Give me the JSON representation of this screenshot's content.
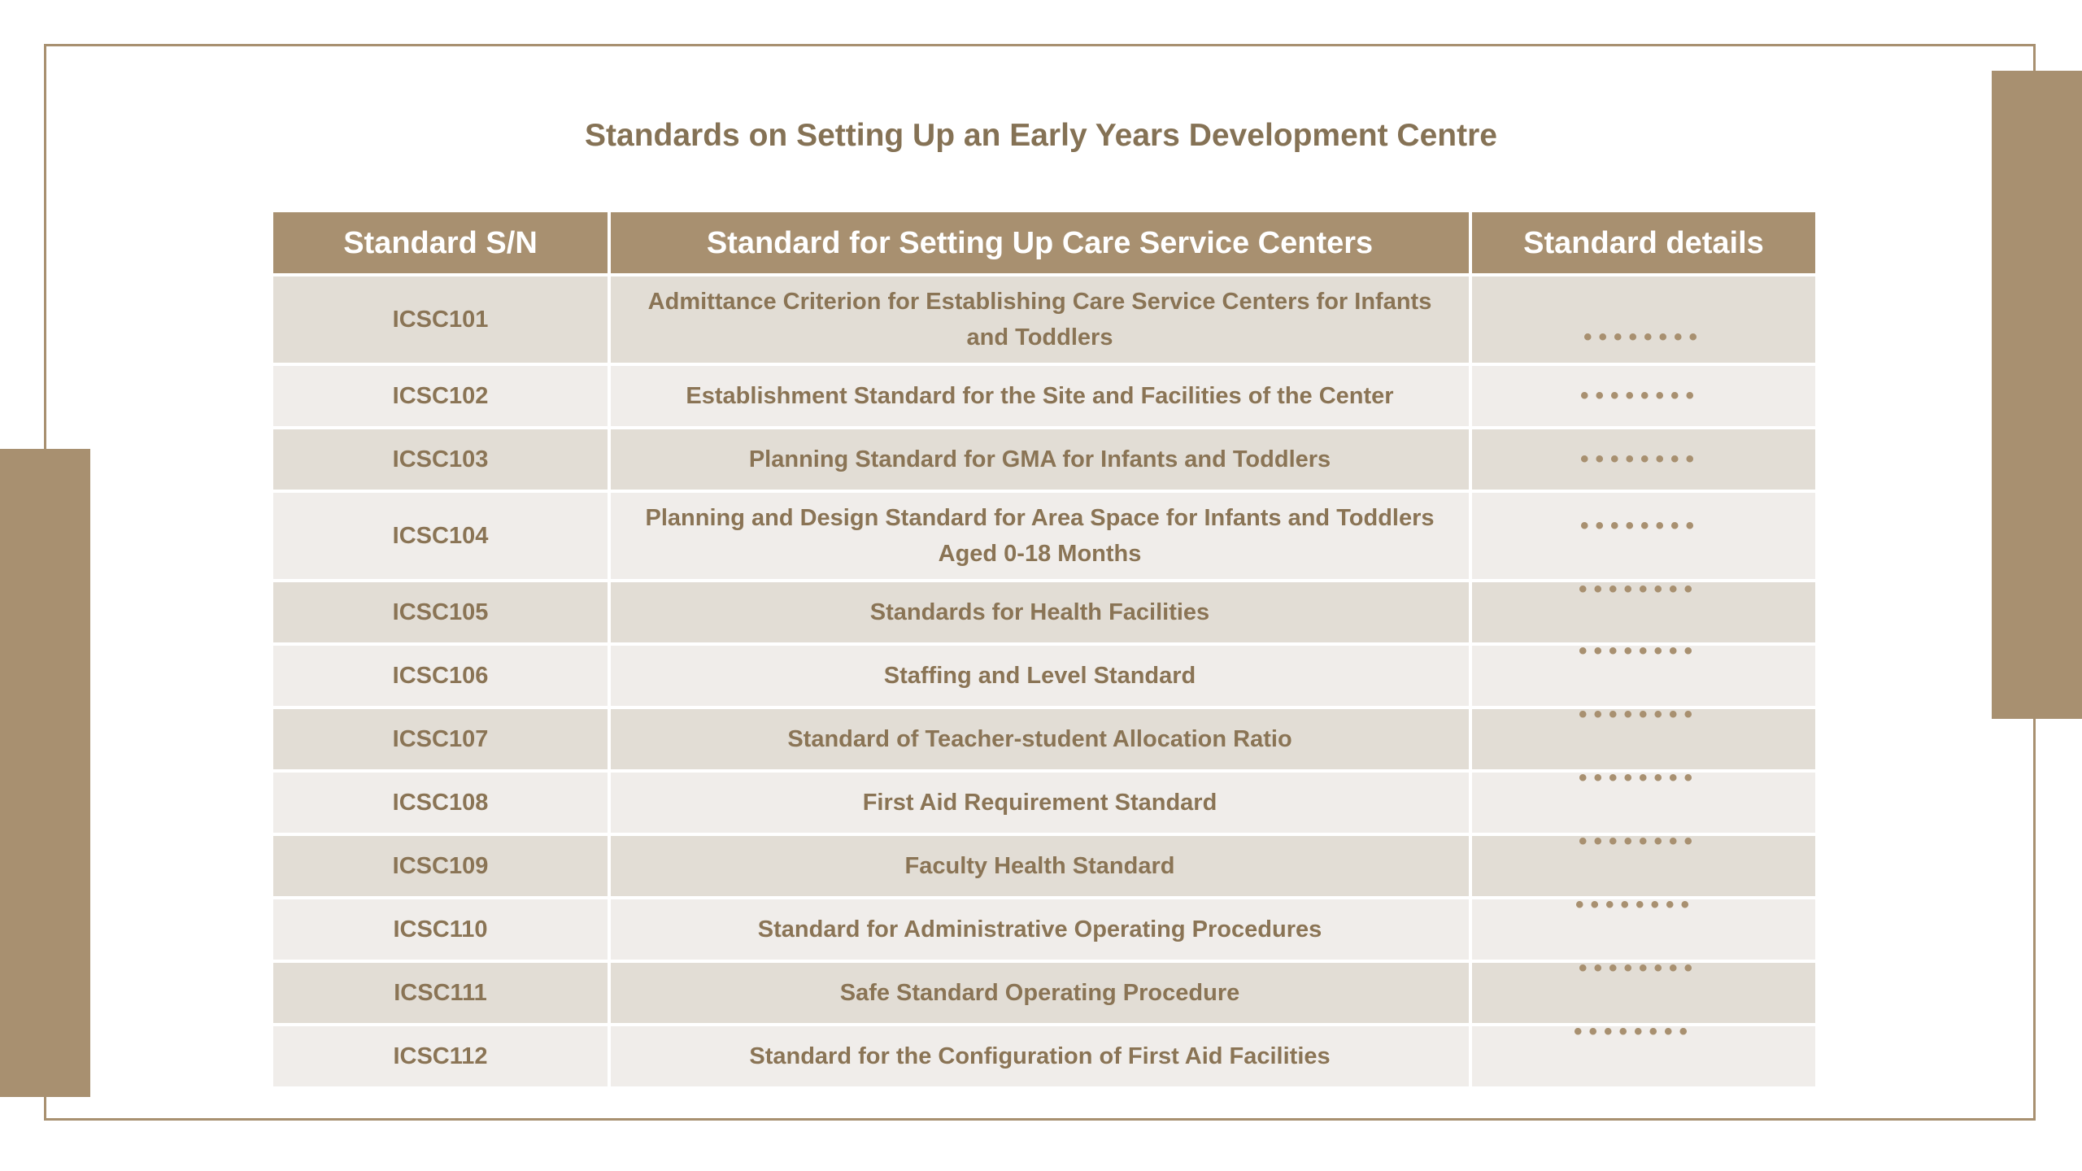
{
  "title": "Standards on Setting Up an Early Years Development Centre",
  "colors": {
    "accent": "#a89070",
    "text": "#8a7455",
    "row_odd": "#e2ddd5",
    "row_even": "#f0edea"
  },
  "table": {
    "headers": [
      "Standard S/N",
      "Standard for Setting Up Care Service Centers",
      "Standard details"
    ],
    "rows": [
      {
        "sn": "ICSC101",
        "standard": "Admittance Criterion for Establishing Care Service Centers for Infants and Toddlers",
        "details": "••••••••"
      },
      {
        "sn": "ICSC102",
        "standard": "Establishment Standard for the Site and Facilities of the Center",
        "details": "••••••••"
      },
      {
        "sn": "ICSC103",
        "standard": "Planning Standard for GMA for Infants and Toddlers",
        "details": "••••••••"
      },
      {
        "sn": "ICSC104",
        "standard": "Planning and Design Standard for Area Space for Infants and Toddlers Aged 0-18 Months",
        "details": "••••••••"
      },
      {
        "sn": "ICSC105",
        "standard": "Standards for Health Facilities",
        "details": "••••••••"
      },
      {
        "sn": "ICSC106",
        "standard": "Staffing and Level Standard",
        "details": "••••••••"
      },
      {
        "sn": "ICSC107",
        "standard": "Standard of Teacher-student Allocation Ratio",
        "details": "••••••••"
      },
      {
        "sn": "ICSC108",
        "standard": "First Aid Requirement Standard",
        "details": "••••••••"
      },
      {
        "sn": "ICSC109",
        "standard": "Faculty Health Standard",
        "details": "••••••••"
      },
      {
        "sn": "ICSC110",
        "standard": "Standard for Administrative Operating Procedures",
        "details": "••••••••"
      },
      {
        "sn": "ICSC111",
        "standard": "Safe Standard Operating Procedure",
        "details": "••••••••"
      },
      {
        "sn": "ICSC112",
        "standard": "Standard for the Configuration of First Aid Facilities",
        "details": "••••••••"
      }
    ]
  }
}
